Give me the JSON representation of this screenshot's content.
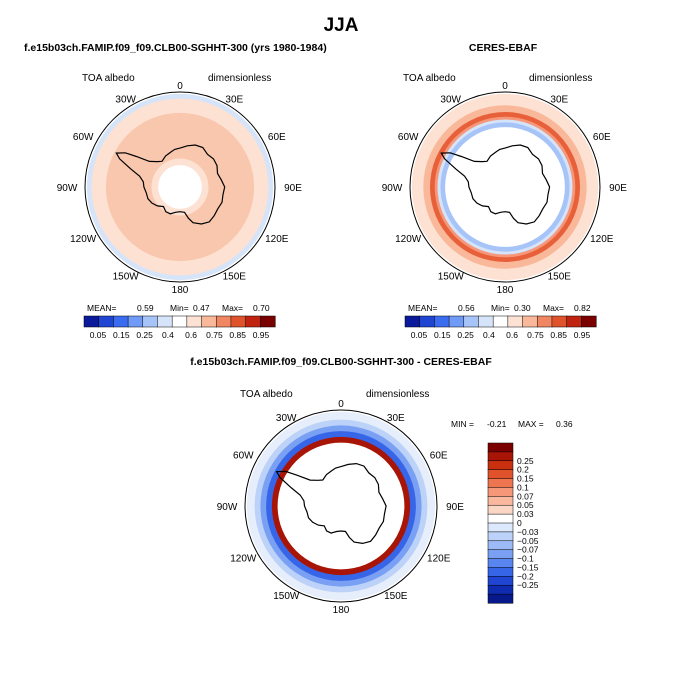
{
  "figure": {
    "title": "JJA",
    "colors": {
      "land_outline": "#000000",
      "map_background": "#ffffff"
    }
  },
  "panels": [
    {
      "id": "model",
      "title": "f.e15b03ch.FAMIP.f09_f09.CLB00-SGHHT-300 (yrs 1980-1984)",
      "left_label": "TOA albedo",
      "right_label": "dimensionless",
      "stats": {
        "mean_label": "MEAN=",
        "mean": "0.59",
        "min_label": "Min=",
        "min": "0.47",
        "max_label": "Max=",
        "max": "0.70"
      }
    },
    {
      "id": "obs",
      "title": "CERES-EBAF",
      "left_label": "TOA albedo",
      "right_label": "dimensionless",
      "stats": {
        "mean_label": "MEAN=",
        "mean": "0.56",
        "min_label": "Min=",
        "min": "0.30",
        "max_label": "Max=",
        "max": "0.82"
      }
    },
    {
      "id": "diff",
      "title": "f.e15b03ch.FAMIP.f09_f09.CLB00-SGHHT-300 - CERES-EBAF",
      "left_label": "TOA albedo",
      "right_label": "dimensionless",
      "stats": {
        "min_label": "MIN =",
        "min": "-0.21",
        "max_label": "MAX =",
        "max": "0.36"
      }
    }
  ],
  "longitude_labels": [
    "0",
    "30E",
    "60E",
    "90E",
    "120E",
    "150E",
    "180",
    "150W",
    "120W",
    "90W",
    "60W",
    "30W"
  ],
  "colorbars": {
    "absolute": {
      "labels": [
        "0.05",
        "0.15",
        "0.25",
        "0.4",
        "0.6",
        "0.75",
        "0.85",
        "0.95"
      ],
      "colors": [
        "#0a1a9a",
        "#1f45d2",
        "#3a6cf0",
        "#6f9af5",
        "#a7c4f8",
        "#d6e4f9",
        "#ffffff",
        "#fde1d2",
        "#f9b89a",
        "#f18762",
        "#e0522c",
        "#c0230f",
        "#7a0000"
      ]
    },
    "difference": {
      "labels": [
        "0.25",
        "0.2",
        "0.15",
        "0.1",
        "0.07",
        "0.05",
        "0.03",
        "0",
        "−0.03",
        "−0.05",
        "−0.07",
        "−0.1",
        "−0.15",
        "−0.2",
        "−0.25"
      ],
      "colors": [
        "#7a0000",
        "#a81405",
        "#c8300f",
        "#e0522c",
        "#ee7550",
        "#f59778",
        "#fab89f",
        "#fcd6c4",
        "#ffffff",
        "#dce8fb",
        "#bcd2f8",
        "#9cbaf5",
        "#7aa0f3",
        "#5885ef",
        "#3665e8",
        "#1f45d2",
        "#0f2cb0",
        "#07188a"
      ]
    }
  },
  "map_fields": {
    "model": [
      {
        "r": 0.98,
        "color": "#d6e4f9"
      },
      {
        "r": 0.93,
        "color": "#fde1d2"
      },
      {
        "r": 0.78,
        "color": "#f9c7ad"
      },
      {
        "r": 0.3,
        "color": "#fde1d2"
      },
      {
        "r": 0.23,
        "color": "#ffffff"
      }
    ],
    "obs": [
      {
        "r": 0.98,
        "color": "#fde1d2"
      },
      {
        "r": 0.86,
        "color": "#f9b89a"
      },
      {
        "r": 0.79,
        "color": "#e8603a"
      },
      {
        "r": 0.74,
        "color": "#f59778"
      },
      {
        "r": 0.71,
        "color": "#d6e4f9"
      },
      {
        "r": 0.68,
        "color": "#a7c4f8"
      },
      {
        "r": 0.63,
        "color": "#ffffff"
      }
    ],
    "diff": [
      {
        "r": 0.98,
        "color": "#e6eefb"
      },
      {
        "r": 0.9,
        "color": "#bcd2f8"
      },
      {
        "r": 0.84,
        "color": "#7aa0f3"
      },
      {
        "r": 0.78,
        "color": "#3665e8"
      },
      {
        "r": 0.72,
        "color": "#a81405"
      },
      {
        "r": 0.66,
        "color": "#ffffff"
      }
    ]
  }
}
